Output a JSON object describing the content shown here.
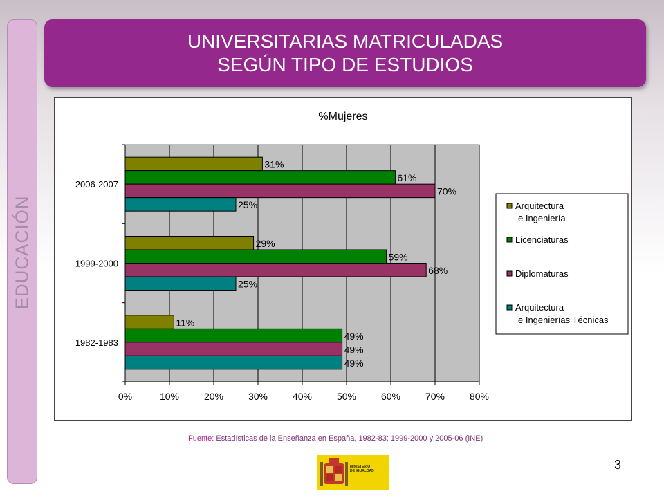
{
  "side_label": "EDUCACIÓN",
  "title": {
    "line1": "UNIVERSITARIAS MATRICULADAS",
    "line2": "SEGÚN TIPO DE ESTUDIOS"
  },
  "source": {
    "label": "Fuente",
    "text": ": Estadísticas de la Enseñanza en España, 1982-83; 1999-2000 y 2005-06 (INE)"
  },
  "page_number": "3",
  "logo": {
    "text_line1": "MINISTERIO",
    "text_line2": "DE IGUALDAD"
  },
  "colors": {
    "title_bg": "#95288c",
    "plot_bg": "#c0c0c0"
  },
  "chart_data": {
    "type": "bar",
    "orientation": "horizontal",
    "title": "%Mujeres",
    "categories": [
      "2006-2007",
      "1999-2000",
      "1982-1983"
    ],
    "series": [
      {
        "name": "Arquitectura e Ingeniería",
        "legend_lines": [
          "Arquitectura",
          "e Ingeniería"
        ],
        "color": "#808000",
        "values": [
          31,
          29,
          11
        ],
        "labels": [
          "31%",
          "29%",
          "11%"
        ]
      },
      {
        "name": "Licenciaturas",
        "legend_lines": [
          "Licenciaturas"
        ],
        "color": "#008000",
        "values": [
          61,
          59,
          49
        ],
        "labels": [
          "61%",
          "59%",
          "49%"
        ]
      },
      {
        "name": "Diplomaturas",
        "legend_lines": [
          "Diplomaturas"
        ],
        "color": "#993366",
        "values": [
          70,
          68,
          49
        ],
        "labels": [
          "70%",
          "68%",
          "49%"
        ]
      },
      {
        "name": "Arquitectura e Ingenierías Técnicas",
        "legend_lines": [
          " Arquitectura",
          "e Ingenierías Técnicas"
        ],
        "color": "#008080",
        "values": [
          25,
          25,
          49
        ],
        "labels": [
          "25%",
          "25%",
          "49%"
        ]
      }
    ],
    "x_ticks": [
      "0%",
      "10%",
      "20%",
      "30%",
      "40%",
      "50%",
      "60%",
      "70%",
      "80%"
    ],
    "xlim": [
      0,
      80
    ],
    "grid": true,
    "legend_position": "right"
  }
}
